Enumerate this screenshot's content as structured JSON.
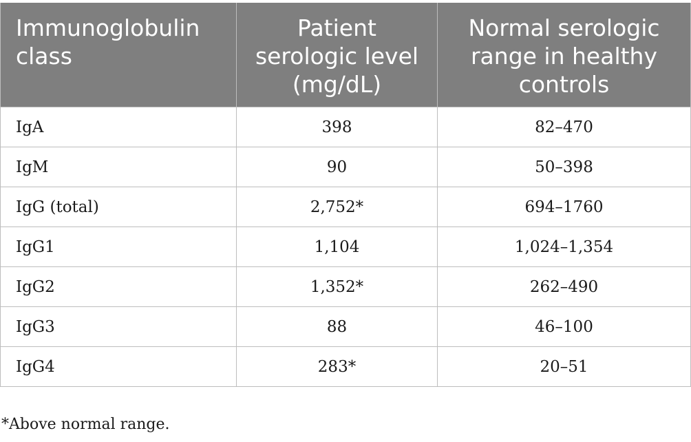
{
  "table": {
    "headers": [
      "Immunoglobulin class",
      "Patient serologic level (mg/dL)",
      "Normal serologic range in healthy controls"
    ],
    "rows": [
      [
        "IgA",
        "398",
        "82–470"
      ],
      [
        "IgM",
        "90",
        "50–398"
      ],
      [
        "IgG (total)",
        "2,752*",
        "694–1760"
      ],
      [
        "IgG1",
        "1,104",
        "1,024–1,354"
      ],
      [
        "IgG2",
        "1,352*",
        "262–490"
      ],
      [
        "IgG3",
        "88",
        "46–100"
      ],
      [
        "IgG4",
        "283*",
        "20–51"
      ]
    ]
  },
  "footnote": "*Above normal range.",
  "colors": {
    "header_background": "#7f7f7f",
    "header_text": "#ffffff",
    "grid_line": "#bdbdbd"
  }
}
